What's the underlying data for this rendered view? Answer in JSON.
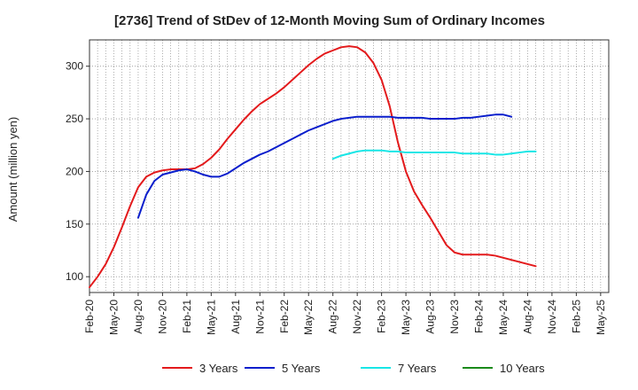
{
  "chart_data": {
    "type": "line",
    "title": "[2736]  Trend of StDev of 12-Month Moving Sum of Ordinary Incomes",
    "xlabel": "",
    "ylabel": "Amount (million yen)",
    "ylim": [
      85,
      325
    ],
    "yticks": [
      100,
      150,
      200,
      250,
      300
    ],
    "grid": true,
    "legend_position": "bottom",
    "x_tick_labels": [
      "Feb-20",
      "May-20",
      "Aug-20",
      "Nov-20",
      "Feb-21",
      "May-21",
      "Aug-21",
      "Nov-21",
      "Feb-22",
      "May-22",
      "Aug-22",
      "Nov-22",
      "Feb-23",
      "May-23",
      "Aug-23",
      "Nov-23",
      "Feb-24",
      "May-24",
      "Aug-24",
      "Nov-24",
      "Feb-25",
      "May-25"
    ],
    "x_months_count": 64,
    "series": [
      {
        "name": "3 Years",
        "color": "#e31a1c",
        "start_month": 0,
        "values": [
          90,
          100,
          112,
          128,
          147,
          167,
          185,
          195,
          199,
          201,
          202,
          202,
          202,
          203,
          207,
          213,
          221,
          231,
          240,
          249,
          257,
          264,
          269,
          274,
          280,
          287,
          294,
          301,
          307,
          312,
          315,
          318,
          319,
          318,
          313,
          303,
          287,
          262,
          228,
          200,
          181,
          168,
          156,
          143,
          130,
          123,
          121,
          121,
          121,
          121,
          120,
          118,
          116,
          114,
          112,
          110
        ]
      },
      {
        "name": "5 Years",
        "color": "#0a1ecc",
        "start_month": 6,
        "values": [
          156,
          178,
          191,
          197,
          199,
          201,
          202,
          200,
          197,
          195,
          195,
          198,
          203,
          208,
          212,
          216,
          219,
          223,
          227,
          231,
          235,
          239,
          242,
          245,
          248,
          250,
          251,
          252,
          252,
          252,
          252,
          252,
          251,
          251,
          251,
          251,
          250,
          250,
          250,
          250,
          251,
          251,
          252,
          253,
          254,
          254,
          252
        ]
      },
      {
        "name": "7 Years",
        "color": "#18e6e6",
        "start_month": 30,
        "values": [
          212,
          215,
          217,
          219,
          220,
          220,
          220,
          219,
          219,
          218,
          218,
          218,
          218,
          218,
          218,
          218,
          217,
          217,
          217,
          217,
          216,
          216,
          217,
          218,
          219,
          219
        ]
      },
      {
        "name": "10 Years",
        "color": "#1a8a1a",
        "start_month": 0,
        "values": []
      }
    ]
  }
}
